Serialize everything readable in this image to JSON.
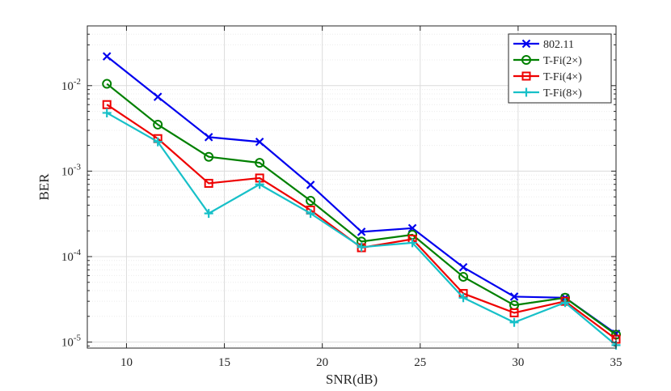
{
  "chart_data": {
    "type": "line",
    "title": "",
    "xlabel": "SNR(dB)",
    "ylabel": "BER",
    "xlim": [
      8,
      35
    ],
    "ylim": [
      8.5e-06,
      0.05
    ],
    "yscale": "log",
    "grid": true,
    "legend_position": "top-right",
    "x_ticks": [
      10,
      15,
      20,
      25,
      30,
      35
    ],
    "x_tick_labels": [
      "10",
      "15",
      "20",
      "25",
      "30",
      "35"
    ],
    "y_ticks": [
      1e-05,
      0.0001,
      0.001,
      0.01
    ],
    "y_tick_labels": [
      {
        "base": "10",
        "exp": "-5"
      },
      {
        "base": "10",
        "exp": "-4"
      },
      {
        "base": "10",
        "exp": "-3"
      },
      {
        "base": "10",
        "exp": "-2"
      }
    ],
    "x": [
      9,
      11.6,
      14.2,
      16.8,
      19.4,
      22,
      24.6,
      27.2,
      29.8,
      32.4,
      35
    ],
    "series": [
      {
        "name": "802.11",
        "color": "#0000ee",
        "marker": "x",
        "values": [
          0.022,
          0.0074,
          0.0025,
          0.0022,
          0.00069,
          0.000195,
          0.000215,
          7.5e-05,
          3.4e-05,
          3.3e-05,
          1.25e-05
        ]
      },
      {
        "name": "T-Fi(2×)",
        "color": "#008000",
        "marker": "o",
        "values": [
          0.0105,
          0.0035,
          0.00147,
          0.00125,
          0.00045,
          0.00015,
          0.00018,
          5.8e-05,
          2.7e-05,
          3.3e-05,
          1.22e-05
        ]
      },
      {
        "name": "T-Fi(4×)",
        "color": "#ee0000",
        "marker": "s",
        "values": [
          0.006,
          0.0024,
          0.00072,
          0.00083,
          0.00035,
          0.000127,
          0.00016,
          3.7e-05,
          2.2e-05,
          3e-05,
          1.08e-05
        ]
      },
      {
        "name": "T-Fi(8×)",
        "color": "#17c0c8",
        "marker": "+",
        "values": [
          0.0048,
          0.0022,
          0.00032,
          0.0007,
          0.00032,
          0.000129,
          0.000145,
          3.3e-05,
          1.7e-05,
          2.9e-05,
          9.2e-06
        ]
      }
    ]
  }
}
